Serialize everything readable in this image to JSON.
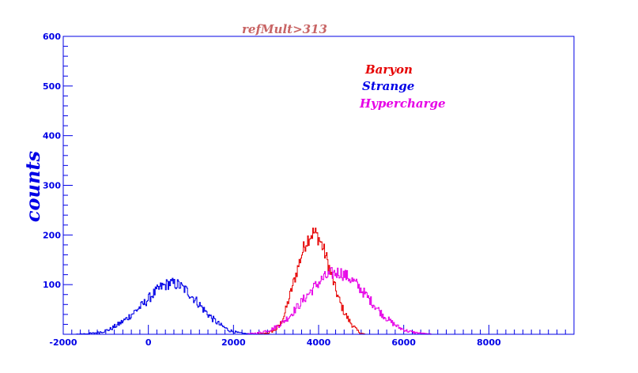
{
  "chart_data": {
    "type": "line",
    "title": "refMult>313",
    "xlabel": "",
    "ylabel": "counts",
    "xlim": [
      -2000,
      10000
    ],
    "ylim": [
      0,
      600
    ],
    "x_ticks": [
      -2000,
      0,
      2000,
      4000,
      6000,
      8000
    ],
    "x_tick_labels": [
      "-2000",
      "0",
      "2000",
      "4000",
      "6000",
      "8000"
    ],
    "y_ticks": [
      100,
      200,
      300,
      400,
      500,
      600
    ],
    "y_tick_labels": [
      "100",
      "200",
      "300",
      "400",
      "500",
      "600"
    ],
    "grid": false,
    "legend_position": "top-right",
    "series": [
      {
        "name": "Baryon",
        "color": "#e60000",
        "x": [
          2500,
          2800,
          3000,
          3100,
          3200,
          3300,
          3400,
          3500,
          3600,
          3700,
          3800,
          3900,
          4000,
          4100,
          4200,
          4300,
          4400,
          4500,
          4600,
          4700,
          4800,
          4900,
          5000,
          5100
        ],
        "y": [
          0,
          2,
          10,
          20,
          40,
          70,
          100,
          130,
          160,
          185,
          200,
          205,
          195,
          175,
          150,
          120,
          90,
          65,
          45,
          30,
          18,
          8,
          2,
          0
        ]
      },
      {
        "name": "Strange",
        "color": "#0000e6",
        "x": [
          -1700,
          -1500,
          -1300,
          -1100,
          -900,
          -700,
          -500,
          -300,
          -100,
          100,
          300,
          500,
          700,
          900,
          1100,
          1300,
          1500,
          1700,
          1900,
          2100,
          2300,
          2500
        ],
        "y": [
          0,
          1,
          2,
          5,
          10,
          20,
          32,
          47,
          62,
          80,
          95,
          103,
          100,
          88,
          70,
          50,
          32,
          18,
          8,
          3,
          1,
          0
        ]
      },
      {
        "name": "Hypercharge",
        "color": "#e600e6",
        "x": [
          2300,
          2600,
          2900,
          3100,
          3300,
          3500,
          3700,
          3900,
          4100,
          4300,
          4500,
          4700,
          4900,
          5100,
          5300,
          5500,
          5700,
          5900,
          6100,
          6300,
          6500,
          6700
        ],
        "y": [
          0,
          3,
          10,
          20,
          35,
          55,
          75,
          95,
          112,
          122,
          125,
          115,
          100,
          80,
          60,
          40,
          25,
          13,
          6,
          3,
          1,
          0
        ]
      }
    ]
  }
}
